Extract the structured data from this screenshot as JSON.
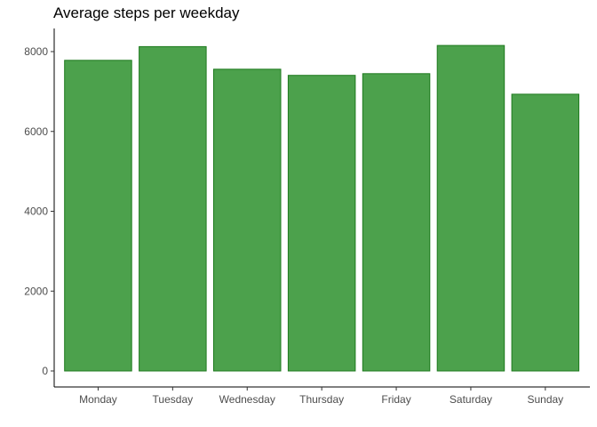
{
  "chart_data": {
    "type": "bar",
    "title": "Average steps per weekday",
    "xlabel": "",
    "ylabel": "",
    "categories": [
      "Monday",
      "Tuesday",
      "Wednesday",
      "Thursday",
      "Friday",
      "Saturday",
      "Sunday"
    ],
    "values": [
      7781,
      8125,
      7559,
      7406,
      7448,
      8153,
      6933
    ],
    "ylim": [
      0,
      8550
    ],
    "yticks": [
      0,
      2000,
      4000,
      6000,
      8000
    ],
    "grid": false,
    "legend": "none",
    "colors": {
      "bar_fill": "#4ca14c",
      "bar_stroke": "#1e7a1e",
      "axis": "#000000",
      "tick_text": "#4d4d4d"
    }
  }
}
